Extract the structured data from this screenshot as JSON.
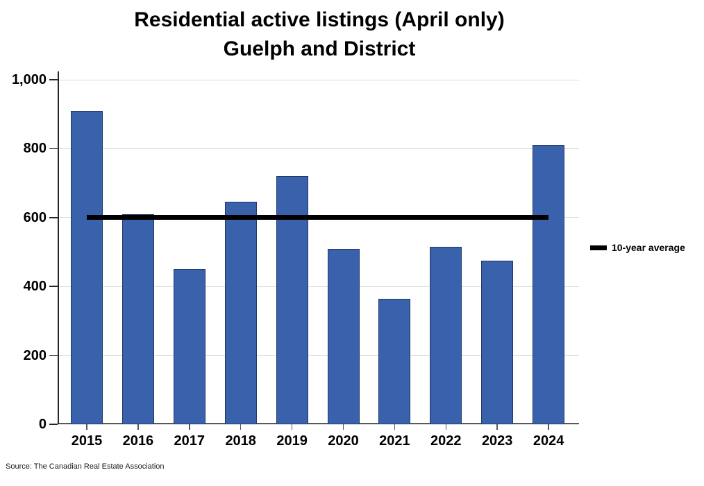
{
  "title": {
    "line1": "Residential active listings (April only)",
    "line2": "Guelph and District"
  },
  "legend": {
    "label": "10-year average"
  },
  "source_note": "Source: The Canadian Real Estate Association",
  "chart_data": {
    "type": "bar",
    "title": "Residential active listings (April only)",
    "subtitle": "Guelph and District",
    "categories": [
      "2015",
      "2016",
      "2017",
      "2018",
      "2019",
      "2020",
      "2021",
      "2022",
      "2023",
      "2024"
    ],
    "values": [
      910,
      610,
      450,
      645,
      720,
      510,
      365,
      515,
      475,
      810
    ],
    "series_name": "Residential active listings",
    "average_line": {
      "label": "10-year average",
      "value": 600
    },
    "xlabel": "",
    "ylabel": "",
    "ylim": [
      0,
      1000
    ],
    "yticks": [
      0,
      200,
      400,
      600,
      800,
      1000
    ],
    "ytick_labels": [
      "0",
      "200",
      "400",
      "600",
      "800",
      "1,000"
    ],
    "grid": true,
    "legend_position": "right",
    "colors": {
      "bar_fill": "#3961AC",
      "bar_border": "#1F3864",
      "average_line": "#000000",
      "gridline": "#D9D9D9",
      "x_axis": "#595959",
      "y_axis": "#262626"
    }
  }
}
